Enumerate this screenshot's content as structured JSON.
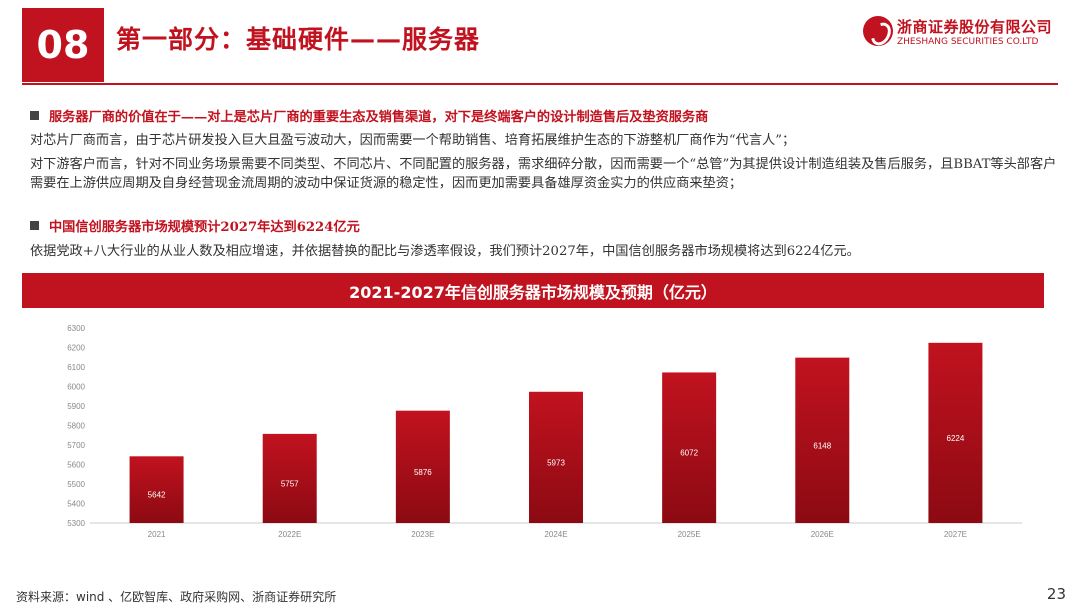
{
  "header": {
    "section_number": "08",
    "title": "第一部分：基础硬件——服务器",
    "logo_cn": "浙商证券股份有限公司",
    "logo_en": "ZHESHANG SECURITIES CO.LTD"
  },
  "content": {
    "bullet1_heading": "服务器厂商的价值在于——对上是芯片厂商的重要生态及销售渠道，对下是终端客户的设计制造售后及垫资服务商",
    "bullet1_para1": "对芯片厂商而言，由于芯片研发投入巨大且盈亏波动大，因而需要一个帮助销售、培育拓展维护生态的下游整机厂商作为“代言人”；",
    "bullet1_para2": "对下游客户而言，针对不同业务场景需要不同类型、不同芯片、不同配置的服务器，需求细碎分散，因而需要一个“总管”为其提供设计制造组装及售后服务，且BBAT等头部客户需要在上游供应周期及自身经营现金流周期的波动中保证货源的稳定性，因而更加需要具备雄厚资金实力的供应商来垫资；",
    "bullet2_heading": "中国信创服务器市场规模预计2027年达到6224亿元",
    "bullet2_para": "依据党政+八大行业的从业人数及相应增速，并依据替换的配比与渗透率假设，我们预计2027年，中国信创服务器市场规模将达到6224亿元。"
  },
  "chart_banner": "2021-2027年信创服务器市场规模及预期（亿元）",
  "chart_data": {
    "type": "bar",
    "title": "2021-2027年信创服务器市场规模及预期（亿元）",
    "categories": [
      "2021",
      "2022E",
      "2023E",
      "2024E",
      "2025E",
      "2026E",
      "2027E"
    ],
    "values": [
      5642,
      5757,
      5876,
      5973,
      6072,
      6148,
      6224
    ],
    "ylim": [
      5300,
      6300
    ],
    "yticks": [
      5300,
      5400,
      5500,
      5600,
      5700,
      5800,
      5900,
      6000,
      6100,
      6200,
      6300
    ],
    "grid": false,
    "bar_color_top": "#c1121f",
    "bar_color_bottom": "#8c0a12"
  },
  "footer": {
    "source": "资料来源：wind 、亿欧智库、政府采购网、浙商证券研究所",
    "page": "23"
  }
}
